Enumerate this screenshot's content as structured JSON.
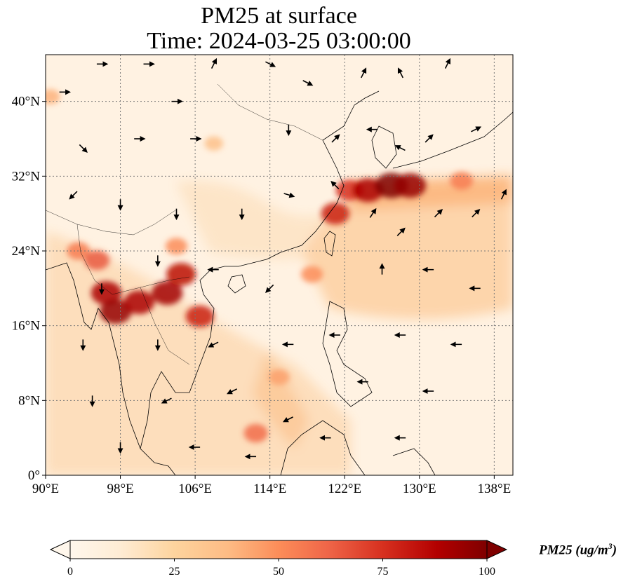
{
  "title": {
    "line1": "PM25 at surface",
    "line2": "Time: 2024-03-25 03:00:00"
  },
  "map": {
    "lon_range": [
      90,
      140
    ],
    "lat_range": [
      0,
      45
    ],
    "x_ticks": [
      "90°E",
      "98°E",
      "106°E",
      "114°E",
      "122°E",
      "130°E",
      "138°E"
    ],
    "x_tick_values": [
      90,
      98,
      106,
      114,
      122,
      130,
      138
    ],
    "y_ticks": [
      "0°",
      "8°N",
      "16°N",
      "24°N",
      "32°N",
      "40°N"
    ],
    "y_tick_values": [
      0,
      8,
      16,
      24,
      32,
      40
    ],
    "gridlines": "dotted",
    "background_color": "#fff2e2"
  },
  "colorbar": {
    "cmap": "OrRd",
    "min": 0,
    "max": 100,
    "ticks": [
      "0",
      "25",
      "50",
      "75",
      "100"
    ],
    "tick_values": [
      0,
      25,
      50,
      75,
      100
    ],
    "label_main": "PM25 (ug/m",
    "label_sup": "3",
    "label_end": ")",
    "extend": "both"
  },
  "pollution_hotspots": [
    {
      "lon": 96.5,
      "lat": 19.5,
      "value": 90
    },
    {
      "lon": 97.5,
      "lat": 17.5,
      "value": 95
    },
    {
      "lon": 100.0,
      "lat": 18.5,
      "value": 90
    },
    {
      "lon": 103.0,
      "lat": 19.5,
      "value": 92
    },
    {
      "lon": 104.5,
      "lat": 21.5,
      "value": 85
    },
    {
      "lon": 106.5,
      "lat": 17.0,
      "value": 80
    },
    {
      "lon": 93.5,
      "lat": 24.0,
      "value": 55
    },
    {
      "lon": 95.5,
      "lat": 23.0,
      "value": 65
    },
    {
      "lon": 121.0,
      "lat": 28.0,
      "value": 80
    },
    {
      "lon": 122.5,
      "lat": 30.5,
      "value": 75
    },
    {
      "lon": 124.5,
      "lat": 30.5,
      "value": 90
    },
    {
      "lon": 127.0,
      "lat": 31.0,
      "value": 100
    },
    {
      "lon": 129.0,
      "lat": 31.0,
      "value": 95
    },
    {
      "lon": 134.5,
      "lat": 31.5,
      "value": 55
    },
    {
      "lon": 118.5,
      "lat": 21.5,
      "value": 50
    },
    {
      "lon": 115.0,
      "lat": 10.5,
      "value": 45
    },
    {
      "lon": 112.5,
      "lat": 4.5,
      "value": 60
    },
    {
      "lon": 104.0,
      "lat": 24.5,
      "value": 50
    },
    {
      "lon": 108.0,
      "lat": 35.5,
      "value": 35
    },
    {
      "lon": 90.5,
      "lat": 40.5,
      "value": 40
    }
  ],
  "wind_vectors": [
    {
      "lon": 92,
      "lat": 41,
      "u": 1,
      "v": 0
    },
    {
      "lon": 96,
      "lat": 44,
      "u": 1,
      "v": 0
    },
    {
      "lon": 101,
      "lat": 44,
      "u": 1,
      "v": 0
    },
    {
      "lon": 104,
      "lat": 40,
      "u": 1,
      "v": 0
    },
    {
      "lon": 108,
      "lat": 44,
      "u": 0.5,
      "v": 1
    },
    {
      "lon": 114,
      "lat": 44,
      "u": 1,
      "v": -0.5
    },
    {
      "lon": 118,
      "lat": 42,
      "u": 1,
      "v": -0.5
    },
    {
      "lon": 124,
      "lat": 43,
      "u": 0.5,
      "v": 1
    },
    {
      "lon": 128,
      "lat": 43,
      "u": -0.5,
      "v": 1
    },
    {
      "lon": 133,
      "lat": 44,
      "u": 0.5,
      "v": 1
    },
    {
      "lon": 94,
      "lat": 35,
      "u": 1,
      "v": -1
    },
    {
      "lon": 100,
      "lat": 36,
      "u": 1,
      "v": 0
    },
    {
      "lon": 106,
      "lat": 36,
      "u": 1,
      "v": 0
    },
    {
      "lon": 116,
      "lat": 37,
      "u": 0,
      "v": -1
    },
    {
      "lon": 121,
      "lat": 36,
      "u": 1,
      "v": 1
    },
    {
      "lon": 125,
      "lat": 37,
      "u": -1,
      "v": 0
    },
    {
      "lon": 128,
      "lat": 35,
      "u": -1,
      "v": 0.5
    },
    {
      "lon": 131,
      "lat": 36,
      "u": 1,
      "v": 1
    },
    {
      "lon": 136,
      "lat": 37,
      "u": 1,
      "v": 0.5
    },
    {
      "lon": 93,
      "lat": 30,
      "u": -1,
      "v": -1
    },
    {
      "lon": 98,
      "lat": 29,
      "u": 0,
      "v": -1
    },
    {
      "lon": 104,
      "lat": 28,
      "u": 0,
      "v": -1
    },
    {
      "lon": 111,
      "lat": 28,
      "u": 0,
      "v": -1
    },
    {
      "lon": 116,
      "lat": 30,
      "u": 1,
      "v": -0.3
    },
    {
      "lon": 121,
      "lat": 31,
      "u": -1,
      "v": 1
    },
    {
      "lon": 125,
      "lat": 28,
      "u": 1,
      "v": 1.5
    },
    {
      "lon": 128,
      "lat": 26,
      "u": 1,
      "v": 1
    },
    {
      "lon": 132,
      "lat": 28,
      "u": 1,
      "v": 1
    },
    {
      "lon": 136,
      "lat": 28,
      "u": 1,
      "v": 1
    },
    {
      "lon": 139,
      "lat": 30,
      "u": 0.5,
      "v": 1
    },
    {
      "lon": 96,
      "lat": 20,
      "u": 0,
      "v": -1
    },
    {
      "lon": 102,
      "lat": 23,
      "u": 0,
      "v": -1
    },
    {
      "lon": 108,
      "lat": 22,
      "u": -1,
      "v": 0
    },
    {
      "lon": 114,
      "lat": 20,
      "u": -1,
      "v": -1
    },
    {
      "lon": 126,
      "lat": 22,
      "u": 0,
      "v": 1
    },
    {
      "lon": 131,
      "lat": 22,
      "u": -1,
      "v": 0
    },
    {
      "lon": 136,
      "lat": 20,
      "u": -1,
      "v": 0
    },
    {
      "lon": 94,
      "lat": 14,
      "u": 0,
      "v": -1
    },
    {
      "lon": 102,
      "lat": 14,
      "u": 0,
      "v": -1
    },
    {
      "lon": 108,
      "lat": 14,
      "u": -1,
      "v": -0.5
    },
    {
      "lon": 116,
      "lat": 14,
      "u": -1,
      "v": 0
    },
    {
      "lon": 121,
      "lat": 15,
      "u": -1,
      "v": 0
    },
    {
      "lon": 128,
      "lat": 15,
      "u": -1,
      "v": 0
    },
    {
      "lon": 134,
      "lat": 14,
      "u": -1,
      "v": 0
    },
    {
      "lon": 95,
      "lat": 8,
      "u": 0,
      "v": -1
    },
    {
      "lon": 103,
      "lat": 8,
      "u": -1,
      "v": -0.5
    },
    {
      "lon": 110,
      "lat": 9,
      "u": -1,
      "v": -0.5
    },
    {
      "lon": 116,
      "lat": 6,
      "u": -1,
      "v": -0.5
    },
    {
      "lon": 124,
      "lat": 10,
      "u": -1,
      "v": 0
    },
    {
      "lon": 131,
      "lat": 9,
      "u": -1,
      "v": 0
    },
    {
      "lon": 98,
      "lat": 3,
      "u": 0,
      "v": -1
    },
    {
      "lon": 106,
      "lat": 3,
      "u": -1,
      "v": 0
    },
    {
      "lon": 112,
      "lat": 2,
      "u": -1,
      "v": 0
    },
    {
      "lon": 120,
      "lat": 4,
      "u": -1,
      "v": 0
    },
    {
      "lon": 128,
      "lat": 4,
      "u": -1,
      "v": 0
    }
  ]
}
